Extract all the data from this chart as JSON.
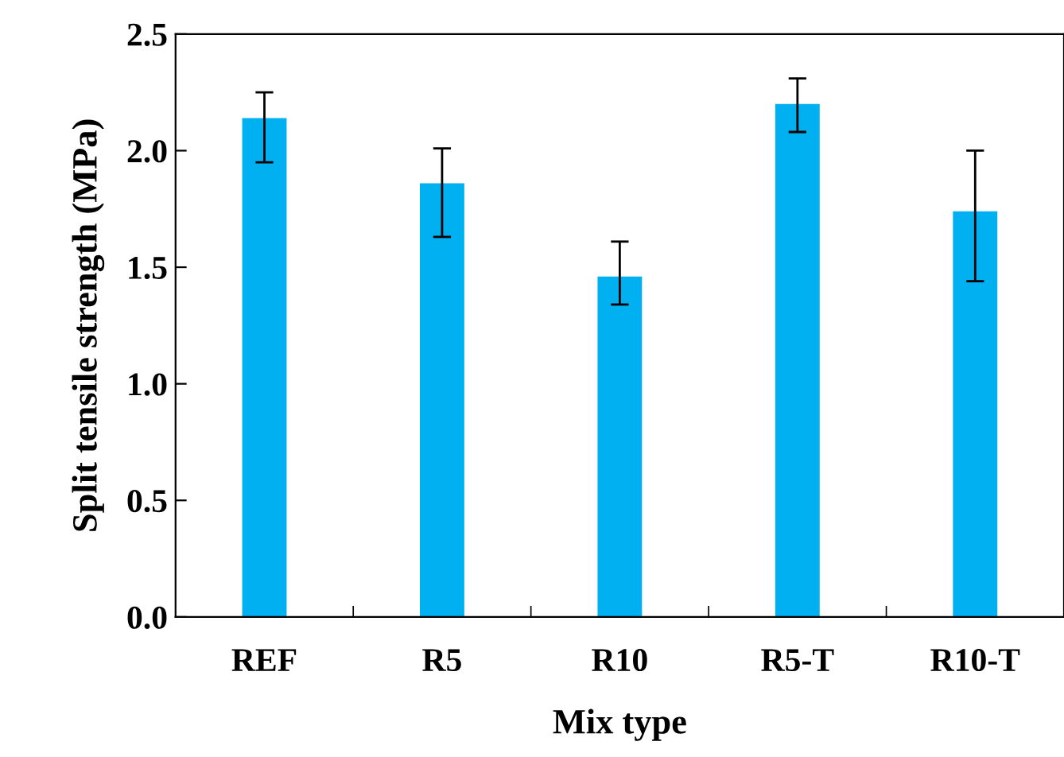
{
  "chart_data": {
    "type": "bar",
    "xlabel": "Mix type",
    "ylabel": "Split tensile strength (MPa)",
    "categories": [
      "REF",
      "R5",
      "R10",
      "R5-T",
      "R10-T"
    ],
    "values": [
      2.14,
      1.86,
      1.46,
      2.2,
      1.74
    ],
    "errors": [
      [
        1.95,
        2.25
      ],
      [
        1.63,
        2.01
      ],
      [
        1.34,
        1.61
      ],
      [
        2.08,
        2.31
      ],
      [
        1.44,
        2.0
      ]
    ],
    "color": "#00b0f0",
    "ylim": [
      0,
      2.5
    ],
    "yticks": [
      {
        "value": 0,
        "label": "0.0"
      },
      {
        "value": 0.5,
        "label": "0.5"
      },
      {
        "value": 1,
        "label": "1.0"
      },
      {
        "value": 1.5,
        "label": "1.5"
      },
      {
        "value": 2,
        "label": "2.0"
      },
      {
        "value": 2.5,
        "label": "2.5"
      }
    ],
    "grid": false,
    "legend": false
  }
}
